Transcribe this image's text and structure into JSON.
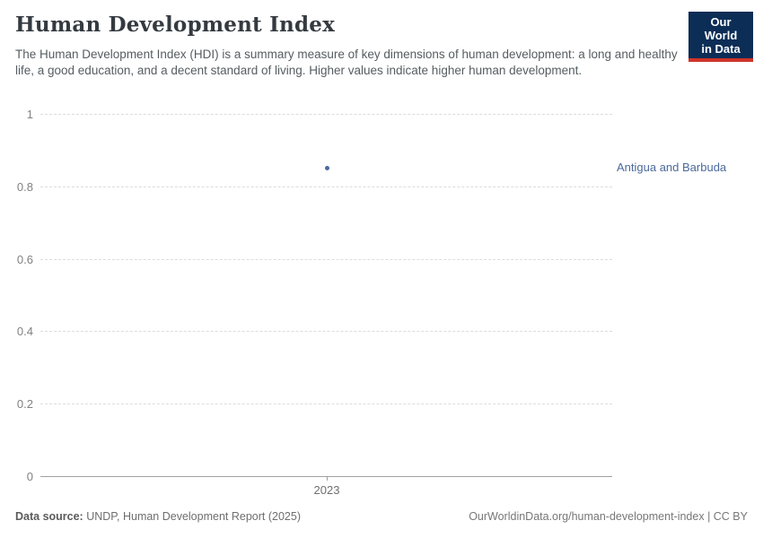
{
  "header": {
    "title": "Human Development Index",
    "subtitle": "The Human Development Index (HDI) is a summary measure of key dimensions of human development: a long and healthy life, a good education, and a decent standard of living. Higher values indicate higher human development.",
    "logo": {
      "line1": "Our World",
      "line2": "in Data",
      "bg_color": "#0c2d56",
      "accent_color": "#d0342a"
    }
  },
  "chart_data": {
    "type": "scatter",
    "title": "Human Development Index",
    "x": [
      2023
    ],
    "xtick_labels": [
      "2023"
    ],
    "series": [
      {
        "name": "Antigua and Barbuda",
        "values": [
          0.851
        ],
        "color": "#4C6A9C"
      }
    ],
    "xlabel": "",
    "ylabel": "",
    "ylim": [
      0,
      1
    ],
    "yticks": [
      0,
      0.2,
      0.4,
      0.6,
      0.8,
      1
    ],
    "ytick_labels": [
      "0",
      "0.2",
      "0.4",
      "0.6",
      "0.8",
      "1"
    ],
    "grid": "dashed-horizontal",
    "legend_position": "right-of-point",
    "gridline_color": "#dcdcdc",
    "axis_color": "#a1a1a1",
    "tick_label_color": "#818181"
  },
  "footer": {
    "source_label": "Data source:",
    "source_text": " UNDP, Human Development Report (2025)",
    "credit": "OurWorldinData.org/human-development-index | CC BY"
  }
}
